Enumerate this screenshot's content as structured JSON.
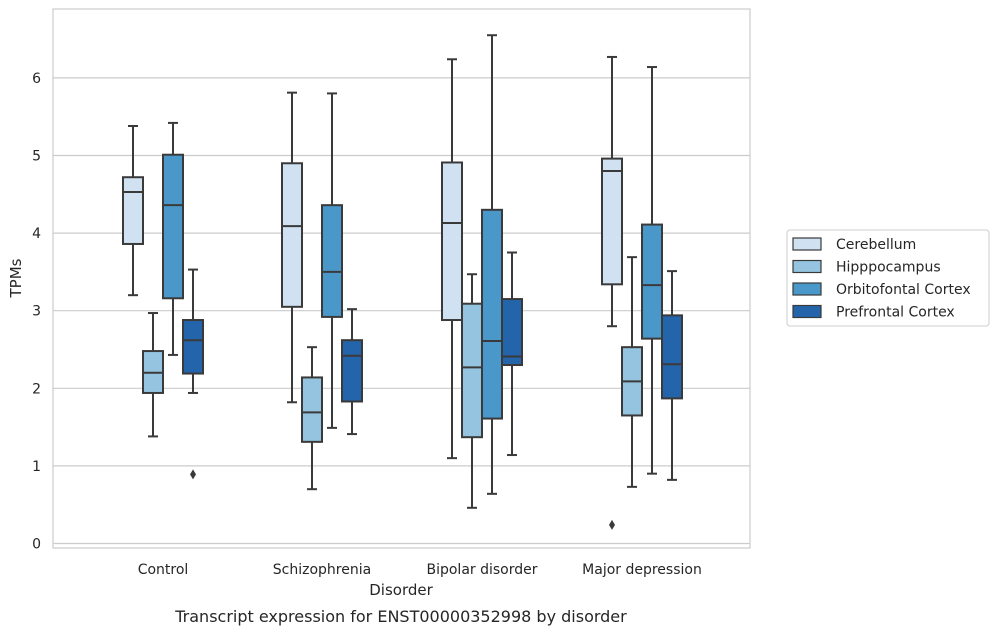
{
  "chart_data": {
    "type": "box",
    "title": "",
    "caption": "Transcript expression for ENST00000352998 by disorder",
    "xlabel": "Disorder",
    "ylabel": "TPMs",
    "ylim": [
      -0.05,
      6.85
    ],
    "yticks": [
      0,
      1,
      2,
      3,
      4,
      5,
      6
    ],
    "grid": "horizontal",
    "legend_position": "right",
    "categories": [
      "Control",
      "Schizophrenia",
      "Bipolar disorder",
      "Major depression"
    ],
    "series": [
      {
        "name": "Cerebellum",
        "color": "#d0e1f2",
        "boxes": [
          {
            "whislo": 3.2,
            "q1": 3.86,
            "med": 4.53,
            "q3": 4.72,
            "whishi": 5.38,
            "fliers": []
          },
          {
            "whislo": 1.82,
            "q1": 3.05,
            "med": 4.09,
            "q3": 4.9,
            "whishi": 5.81,
            "fliers": []
          },
          {
            "whislo": 1.1,
            "q1": 2.88,
            "med": 4.13,
            "q3": 4.91,
            "whishi": 6.24,
            "fliers": []
          },
          {
            "whislo": 2.8,
            "q1": 3.34,
            "med": 4.8,
            "q3": 4.96,
            "whishi": 6.27,
            "fliers": [
              0.24
            ]
          }
        ]
      },
      {
        "name": "Hipppocampus",
        "color": "#94c4df",
        "boxes": [
          {
            "whislo": 1.38,
            "q1": 1.94,
            "med": 2.2,
            "q3": 2.48,
            "whishi": 2.97,
            "fliers": []
          },
          {
            "whislo": 0.7,
            "q1": 1.31,
            "med": 1.69,
            "q3": 2.14,
            "whishi": 2.53,
            "fliers": []
          },
          {
            "whislo": 0.46,
            "q1": 1.37,
            "med": 2.27,
            "q3": 3.09,
            "whishi": 3.47,
            "fliers": []
          },
          {
            "whislo": 0.73,
            "q1": 1.65,
            "med": 2.09,
            "q3": 2.53,
            "whishi": 3.69,
            "fliers": []
          }
        ]
      },
      {
        "name": "Orbitofontal Cortex",
        "color": "#4a98c9",
        "boxes": [
          {
            "whislo": 2.43,
            "q1": 3.16,
            "med": 4.36,
            "q3": 5.01,
            "whishi": 5.42,
            "fliers": []
          },
          {
            "whislo": 1.49,
            "q1": 2.92,
            "med": 3.5,
            "q3": 4.36,
            "whishi": 5.8,
            "fliers": []
          },
          {
            "whislo": 0.64,
            "q1": 1.61,
            "med": 2.61,
            "q3": 4.3,
            "whishi": 6.55,
            "fliers": []
          },
          {
            "whislo": 0.9,
            "q1": 2.64,
            "med": 3.33,
            "q3": 4.11,
            "whishi": 6.14,
            "fliers": []
          }
        ]
      },
      {
        "name": "Prefrontal Cortex",
        "color": "#2464ab",
        "boxes": [
          {
            "whislo": 1.94,
            "q1": 2.19,
            "med": 2.62,
            "q3": 2.88,
            "whishi": 3.53,
            "fliers": [
              0.89
            ]
          },
          {
            "whislo": 1.41,
            "q1": 1.83,
            "med": 2.42,
            "q3": 2.62,
            "whishi": 3.02,
            "fliers": []
          },
          {
            "whislo": 1.14,
            "q1": 2.3,
            "med": 2.41,
            "q3": 3.15,
            "whishi": 3.75,
            "fliers": []
          },
          {
            "whislo": 0.82,
            "q1": 1.87,
            "med": 2.31,
            "q3": 2.94,
            "whishi": 3.51,
            "fliers": []
          }
        ]
      }
    ]
  }
}
